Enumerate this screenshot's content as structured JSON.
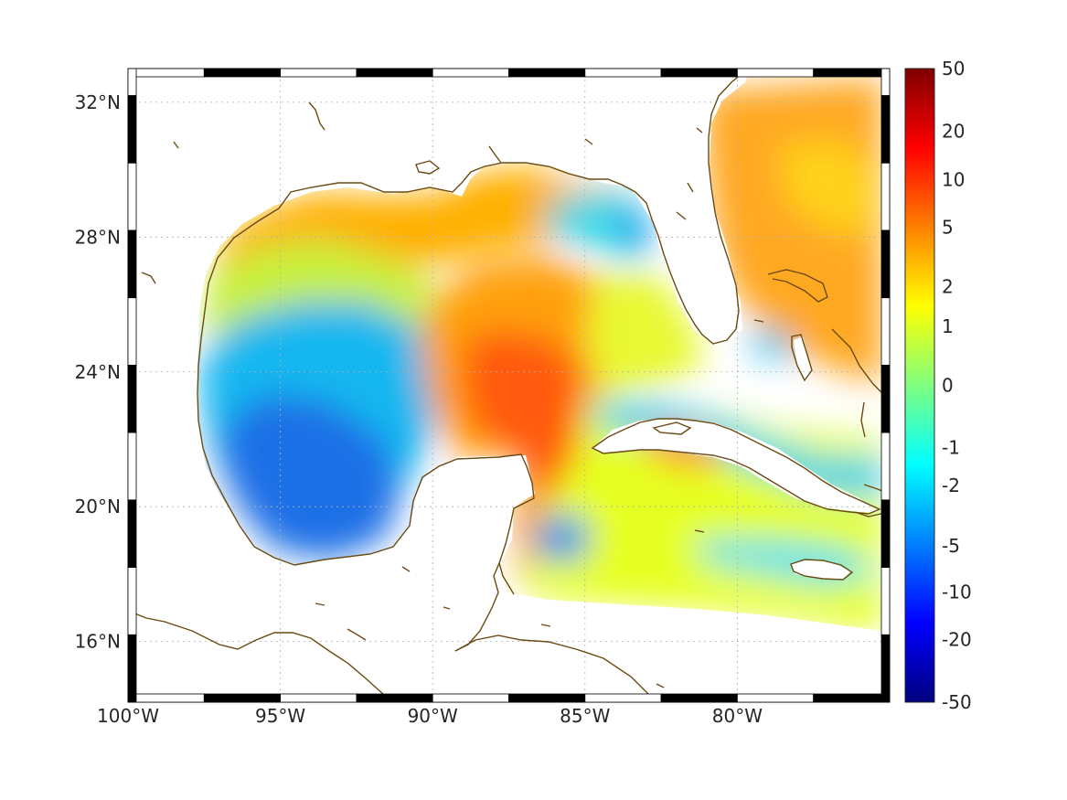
{
  "map": {
    "lon_range": [
      -100,
      -75
    ],
    "lat_range": [
      14.2,
      33
    ],
    "lon_ticks": [
      {
        "value": -100,
        "label": "100°W"
      },
      {
        "value": -95,
        "label": "95°W"
      },
      {
        "value": -90,
        "label": "90°W"
      },
      {
        "value": -85,
        "label": "85°W"
      },
      {
        "value": -80,
        "label": "80°W"
      }
    ],
    "lat_ticks": [
      {
        "value": 32,
        "label": "32°N"
      },
      {
        "value": 28,
        "label": "28°N"
      },
      {
        "value": 24,
        "label": "24°N"
      },
      {
        "value": 20,
        "label": "20°N"
      },
      {
        "value": 16,
        "label": "16°N"
      }
    ],
    "grid": true,
    "frame": "black-and-white map border",
    "coastline_color": "#6b4a12"
  },
  "colorbar": {
    "labels": [
      "50",
      "20",
      "10",
      "5",
      "2",
      "1",
      "0",
      "-1",
      "-2",
      "-5",
      "-10",
      "-20",
      "-50"
    ],
    "colormap": "jet",
    "top_color": "#7f0000",
    "bottom_color": "#00007f"
  },
  "field_regions": [
    {
      "name": "northwest-shelf",
      "value": 4,
      "color": "#ffb000"
    },
    {
      "name": "western-gulf",
      "value": -3,
      "color": "#19b7f0"
    },
    {
      "name": "southwestern-gulf",
      "value": -6,
      "color": "#1a6fe6"
    },
    {
      "name": "loop-current",
      "value": 8,
      "color": "#ff6a10"
    },
    {
      "name": "eastern-shelf",
      "value": -1.5,
      "color": "#38d8e8"
    },
    {
      "name": "atlantic",
      "value": 4,
      "color": "#ffa820"
    },
    {
      "name": "caribbean",
      "value": 1,
      "color": "#e6ff20"
    },
    {
      "name": "cayman-eddy",
      "value": -5,
      "color": "#2a8ef0"
    }
  ]
}
